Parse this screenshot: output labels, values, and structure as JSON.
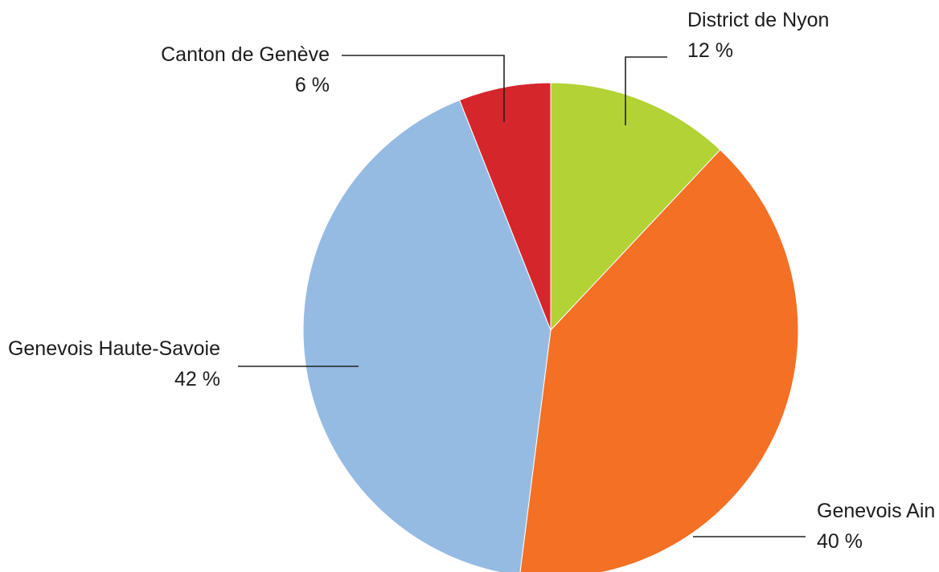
{
  "chart_data": {
    "type": "pie",
    "start": "12 o'clock",
    "direction": "clockwise",
    "slices": [
      {
        "label": "District de Nyon",
        "value": 12,
        "value_text": "12 %",
        "color": "#b2d235"
      },
      {
        "label": "Genevois Ain",
        "value": 40,
        "value_text": "40 %",
        "color": "#f37024"
      },
      {
        "label": "Genevois Haute-Savoie",
        "value": 42,
        "value_text": "42 %",
        "color": "#95bbe3"
      },
      {
        "label": "Canton de Genève",
        "value": 6,
        "value_text": "6 %",
        "color": "#d5262c"
      }
    ]
  }
}
